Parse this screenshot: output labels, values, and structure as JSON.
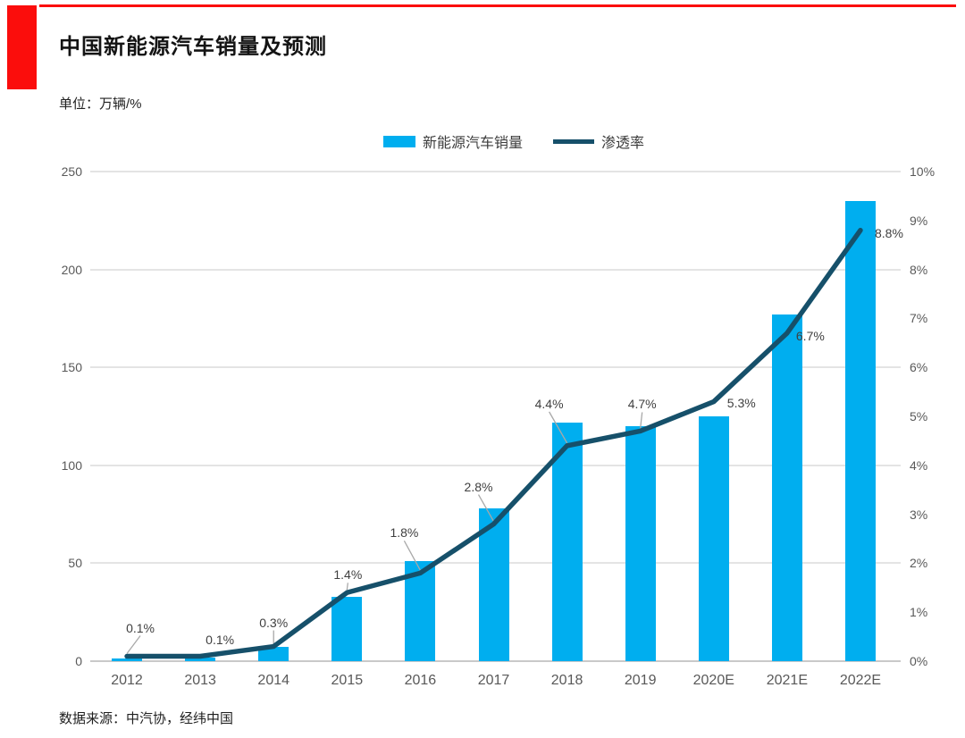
{
  "header": {
    "title": "中国新能源汽车销量及预测",
    "subtitle": "单位：万辆/%"
  },
  "footer": {
    "source": "数据来源：中汽协，经纬中国"
  },
  "colors": {
    "accent_red": "#fb0d0c",
    "bar": "#00aeef",
    "line": "#16506a",
    "grid": "#e4e4e4",
    "tick_text": "#595959",
    "label_text": "#3f3f3f"
  },
  "chart_data": {
    "type": "combo-bar-line",
    "title": "中国新能源汽车销量及预测",
    "unit": "万辆/%",
    "categories": [
      "2012",
      "2013",
      "2014",
      "2015",
      "2016",
      "2017",
      "2018",
      "2019",
      "2020E",
      "2021E",
      "2022E"
    ],
    "series": [
      {
        "name": "新能源汽车销量",
        "type": "bar",
        "axis": "left",
        "values": [
          1.3,
          1.8,
          7.5,
          33,
          51,
          78,
          122,
          120,
          125,
          177,
          235
        ]
      },
      {
        "name": "渗透率",
        "type": "line",
        "axis": "right",
        "values": [
          0.1,
          0.1,
          0.3,
          1.4,
          1.8,
          2.8,
          4.4,
          4.7,
          5.3,
          6.7,
          8.8
        ],
        "labels": [
          "0.1%",
          "0.1%",
          "0.3%",
          "1.4%",
          "1.8%",
          "2.8%",
          "4.4%",
          "4.7%",
          "5.3%",
          "6.7%",
          "8.8%"
        ],
        "label_offsets": [
          {
            "dx": 15,
            "dy": -32,
            "leader": true
          },
          {
            "dx": 22,
            "dy": -19,
            "leader": false
          },
          {
            "dx": 0,
            "dy": -27,
            "leader": true
          },
          {
            "dx": 1,
            "dy": -20,
            "leader": true
          },
          {
            "dx": -18,
            "dy": -45,
            "leader": true
          },
          {
            "dx": -17,
            "dy": -42,
            "leader": true
          },
          {
            "dx": -20,
            "dy": -47,
            "leader": true
          },
          {
            "dx": 2,
            "dy": -30,
            "leader": true
          },
          {
            "dx": 31,
            "dy": 1,
            "leader": false
          },
          {
            "dx": 26,
            "dy": 3,
            "leader": false
          },
          {
            "dx": 32,
            "dy": 3,
            "leader": false
          }
        ]
      }
    ],
    "left_axis": {
      "min": 0,
      "max": 250,
      "ticks": [
        "0",
        "50",
        "100",
        "150",
        "200",
        "250"
      ]
    },
    "right_axis": {
      "min": 0,
      "max": 10,
      "ticks": [
        "0%",
        "1%",
        "2%",
        "3%",
        "4%",
        "5%",
        "6%",
        "7%",
        "8%",
        "9%",
        "10%"
      ]
    },
    "grid": "horizontal-on-left-ticks",
    "legend_position": "top-center"
  }
}
